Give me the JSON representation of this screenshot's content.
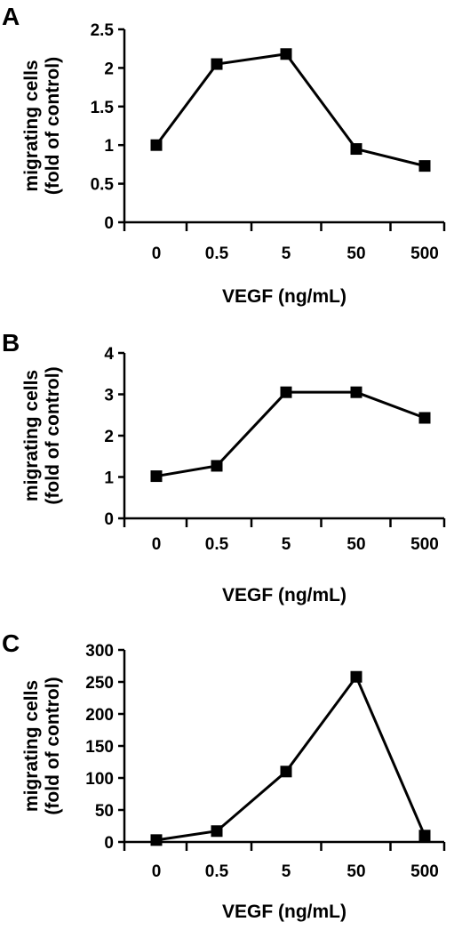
{
  "chart_data": [
    {
      "type": "line",
      "panel_label": "A",
      "categories": [
        "0",
        "0.5",
        "5",
        "50",
        "500"
      ],
      "values": [
        1.0,
        2.05,
        2.18,
        0.95,
        0.73
      ],
      "ylim": [
        0,
        2.5
      ],
      "yticks": [
        "0",
        "0.5",
        "1",
        "1.5",
        "2",
        "2.5"
      ],
      "ylabel_lines": [
        "migrating cells",
        "(fold of control)"
      ],
      "xlabel": "VEGF (ng/mL)",
      "grid": false,
      "legend": "none"
    },
    {
      "type": "line",
      "panel_label": "B",
      "categories": [
        "0",
        "0.5",
        "5",
        "50",
        "500"
      ],
      "values": [
        1.02,
        1.27,
        3.05,
        3.05,
        2.43
      ],
      "ylim": [
        0,
        4
      ],
      "yticks": [
        "0",
        "1",
        "2",
        "3",
        "4"
      ],
      "ylabel_lines": [
        "migrating cells",
        "(fold of control)"
      ],
      "xlabel": "VEGF (ng/mL)",
      "grid": false,
      "legend": "none"
    },
    {
      "type": "line",
      "panel_label": "C",
      "categories": [
        "0",
        "0.5",
        "5",
        "50",
        "500"
      ],
      "values": [
        3,
        17,
        110,
        258,
        10
      ],
      "ylim": [
        0,
        300
      ],
      "yticks": [
        "0",
        "50",
        "100",
        "150",
        "200",
        "250",
        "300"
      ],
      "ylabel_lines": [
        "migrating cells",
        "(fold of control)"
      ],
      "xlabel": "VEGF (ng/mL)",
      "grid": false,
      "legend": "none"
    }
  ]
}
